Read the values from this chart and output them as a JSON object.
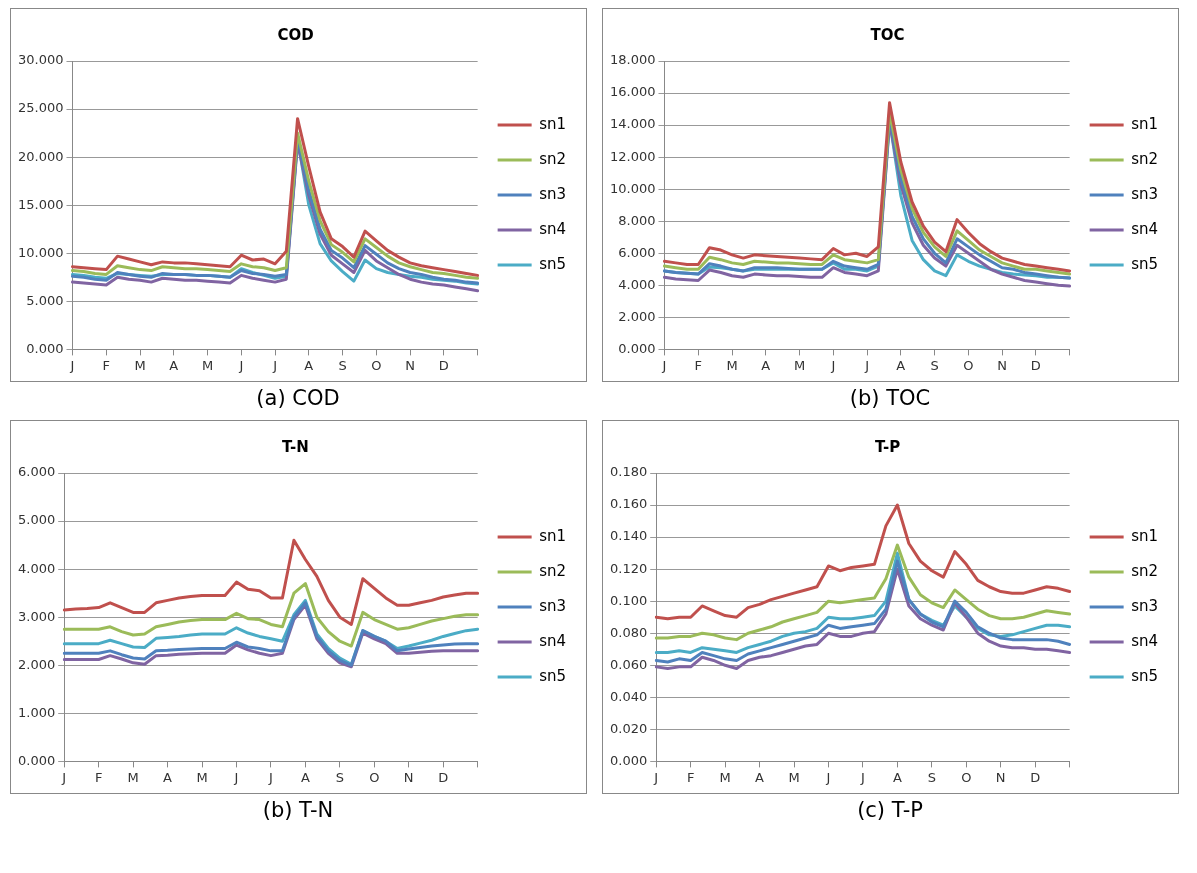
{
  "chart_data": [
    {
      "type": "line",
      "title": "COD",
      "annotations": [
        "(a) COD"
      ],
      "categories": [
        "J",
        null,
        null,
        "F",
        null,
        null,
        "M",
        null,
        null,
        "A",
        null,
        null,
        "M",
        null,
        null,
        "J",
        null,
        null,
        "J",
        null,
        null,
        "A",
        null,
        null,
        "S",
        null,
        null,
        "O",
        null,
        null,
        "N",
        null,
        null,
        "D",
        null,
        null,
        null
      ],
      "ylim": [
        0,
        30
      ],
      "yticks": [
        {
          "value": 0,
          "label": "0.000"
        },
        {
          "value": 5,
          "label": "5.000"
        },
        {
          "value": 10,
          "label": "10.000"
        },
        {
          "value": 15,
          "label": "15.000"
        },
        {
          "value": 20,
          "label": "20.000"
        },
        {
          "value": 25,
          "label": "25.000"
        },
        {
          "value": 30,
          "label": "30.000"
        }
      ],
      "grid": "y",
      "legend": "right",
      "marker": "none",
      "line_style": "solid",
      "series": [
        {
          "name": "sn1",
          "color": "#c0504d",
          "values": [
            8.6,
            8.5,
            8.4,
            8.3,
            9.7,
            9.4,
            9.1,
            8.8,
            9.1,
            9.0,
            9.0,
            8.9,
            8.8,
            8.7,
            8.6,
            9.8,
            9.3,
            9.4,
            8.9,
            10.2,
            24.0,
            19.0,
            14.3,
            11.5,
            10.7,
            9.6,
            12.3,
            11.3,
            10.3,
            9.6,
            9.0,
            8.7,
            8.5,
            8.3,
            8.1,
            7.9,
            7.7
          ]
        },
        {
          "name": "sn2",
          "color": "#9bbb59",
          "values": [
            8.2,
            8.1,
            7.9,
            7.8,
            8.7,
            8.5,
            8.3,
            8.2,
            8.6,
            8.5,
            8.4,
            8.4,
            8.3,
            8.2,
            8.1,
            8.9,
            8.6,
            8.5,
            8.2,
            8.5,
            22.5,
            17.5,
            13.4,
            10.9,
            10.1,
            9.1,
            11.5,
            10.6,
            9.7,
            9.0,
            8.6,
            8.3,
            8.0,
            7.9,
            7.7,
            7.5,
            7.4
          ]
        },
        {
          "name": "sn3",
          "color": "#4f81bd",
          "values": [
            7.6,
            7.5,
            7.3,
            7.2,
            8.0,
            7.8,
            7.6,
            7.5,
            7.9,
            7.8,
            7.8,
            7.7,
            7.7,
            7.6,
            7.5,
            8.2,
            7.9,
            7.8,
            7.6,
            7.8,
            22.0,
            16.5,
            12.5,
            10.3,
            9.5,
            8.5,
            10.8,
            9.9,
            9.0,
            8.4,
            8.0,
            7.8,
            7.5,
            7.3,
            7.2,
            7.0,
            6.9
          ]
        },
        {
          "name": "sn4",
          "color": "#8064a2",
          "values": [
            7.0,
            6.9,
            6.8,
            6.7,
            7.5,
            7.3,
            7.2,
            7.0,
            7.4,
            7.3,
            7.2,
            7.2,
            7.1,
            7.0,
            6.9,
            7.7,
            7.4,
            7.2,
            7.0,
            7.3,
            21.5,
            16.0,
            12.0,
            9.8,
            8.9,
            8.0,
            10.3,
            9.2,
            8.5,
            7.8,
            7.3,
            7.0,
            6.8,
            6.7,
            6.5,
            6.3,
            6.1
          ]
        },
        {
          "name": "sn5",
          "color": "#4bacc6",
          "values": [
            7.8,
            7.7,
            7.5,
            7.4,
            7.9,
            7.8,
            7.7,
            7.6,
            7.8,
            7.8,
            7.8,
            7.7,
            7.7,
            7.6,
            7.5,
            8.4,
            8.0,
            7.7,
            7.4,
            7.6,
            21.8,
            15.0,
            11.0,
            9.2,
            8.1,
            7.1,
            9.3,
            8.4,
            8.0,
            7.8,
            7.6,
            7.5,
            7.3,
            7.2,
            7.1,
            6.9,
            6.8
          ]
        }
      ]
    },
    {
      "type": "line",
      "title": "TOC",
      "annotations": [
        "(b) TOC"
      ],
      "categories": [
        "J",
        null,
        null,
        "F",
        null,
        null,
        "M",
        null,
        null,
        "A",
        null,
        null,
        "M",
        null,
        null,
        "J",
        null,
        null,
        "J",
        null,
        null,
        "A",
        null,
        null,
        "S",
        null,
        null,
        "O",
        null,
        null,
        "N",
        null,
        null,
        "D",
        null,
        null,
        null
      ],
      "ylim": [
        0,
        18
      ],
      "yticks": [
        {
          "value": 0,
          "label": "0.000"
        },
        {
          "value": 2,
          "label": "2.000"
        },
        {
          "value": 4,
          "label": "4.000"
        },
        {
          "value": 6,
          "label": "6.000"
        },
        {
          "value": 8,
          "label": "8.000"
        },
        {
          "value": 10,
          "label": "10.000"
        },
        {
          "value": 12,
          "label": "12.000"
        },
        {
          "value": 14,
          "label": "14.000"
        },
        {
          "value": 16,
          "label": "16.000"
        },
        {
          "value": 18,
          "label": "18.000"
        }
      ],
      "grid": "y",
      "legend": "right",
      "marker": "none",
      "line_style": "solid",
      "series": [
        {
          "name": "sn1",
          "color": "#c0504d",
          "values": [
            5.5,
            5.4,
            5.3,
            5.3,
            6.35,
            6.2,
            5.9,
            5.7,
            5.9,
            5.85,
            5.8,
            5.75,
            5.7,
            5.65,
            5.6,
            6.3,
            5.9,
            6.0,
            5.8,
            6.4,
            15.4,
            11.7,
            9.2,
            7.7,
            6.7,
            6.1,
            8.1,
            7.3,
            6.6,
            6.1,
            5.7,
            5.5,
            5.3,
            5.2,
            5.1,
            5.0,
            4.9
          ]
        },
        {
          "name": "sn2",
          "color": "#9bbb59",
          "values": [
            5.2,
            5.1,
            5.0,
            5.0,
            5.75,
            5.6,
            5.4,
            5.3,
            5.5,
            5.45,
            5.4,
            5.4,
            5.35,
            5.3,
            5.3,
            5.9,
            5.6,
            5.5,
            5.4,
            5.6,
            14.8,
            11.2,
            8.8,
            7.3,
            6.4,
            5.8,
            7.4,
            6.8,
            6.2,
            5.8,
            5.4,
            5.2,
            5.0,
            5.0,
            4.9,
            4.8,
            4.7
          ]
        },
        {
          "name": "sn3",
          "color": "#4f81bd",
          "values": [
            4.9,
            4.8,
            4.75,
            4.7,
            5.35,
            5.2,
            5.0,
            4.9,
            5.1,
            5.1,
            5.1,
            5.05,
            5.0,
            5.0,
            5.0,
            5.5,
            5.2,
            5.1,
            5.0,
            5.3,
            14.5,
            10.7,
            8.3,
            6.9,
            6.0,
            5.4,
            6.9,
            6.4,
            5.9,
            5.5,
            5.1,
            5.0,
            4.8,
            4.7,
            4.6,
            4.5,
            4.45
          ]
        },
        {
          "name": "sn4",
          "color": "#8064a2",
          "values": [
            4.5,
            4.4,
            4.35,
            4.3,
            4.95,
            4.8,
            4.6,
            4.5,
            4.7,
            4.65,
            4.6,
            4.6,
            4.55,
            4.5,
            4.5,
            5.1,
            4.8,
            4.7,
            4.6,
            4.9,
            14.2,
            10.3,
            7.9,
            6.5,
            5.7,
            5.2,
            6.5,
            6.0,
            5.5,
            5.0,
            4.7,
            4.5,
            4.3,
            4.2,
            4.1,
            4.0,
            3.95
          ]
        },
        {
          "name": "sn5",
          "color": "#4bacc6",
          "values": [
            4.9,
            4.8,
            4.75,
            4.7,
            5.15,
            5.1,
            5.0,
            4.9,
            5.0,
            5.0,
            5.0,
            5.0,
            5.0,
            5.0,
            5.0,
            5.4,
            5.0,
            5.0,
            4.9,
            5.2,
            14.3,
            9.6,
            6.8,
            5.6,
            4.9,
            4.6,
            5.9,
            5.5,
            5.2,
            5.0,
            4.8,
            4.7,
            4.65,
            4.6,
            4.5,
            4.5,
            4.45
          ]
        }
      ]
    },
    {
      "type": "line",
      "title": "T-N",
      "annotations": [
        "(b) T-N"
      ],
      "categories": [
        "J",
        null,
        null,
        "F",
        null,
        null,
        "M",
        null,
        null,
        "A",
        null,
        null,
        "M",
        null,
        null,
        "J",
        null,
        null,
        "J",
        null,
        null,
        "A",
        null,
        null,
        "S",
        null,
        null,
        "O",
        null,
        null,
        "N",
        null,
        null,
        "D",
        null,
        null,
        null
      ],
      "ylim": [
        0,
        6
      ],
      "yticks": [
        {
          "value": 0,
          "label": "0.000"
        },
        {
          "value": 1,
          "label": "1.000"
        },
        {
          "value": 2,
          "label": "2.000"
        },
        {
          "value": 3,
          "label": "3.000"
        },
        {
          "value": 4,
          "label": "4.000"
        },
        {
          "value": 5,
          "label": "5.000"
        },
        {
          "value": 6,
          "label": "6.000"
        }
      ],
      "grid": "y",
      "legend": "right",
      "marker": "none",
      "line_style": "solid",
      "series": [
        {
          "name": "sn1",
          "color": "#c0504d",
          "values": [
            3.15,
            3.17,
            3.18,
            3.2,
            3.3,
            3.2,
            3.1,
            3.1,
            3.3,
            3.35,
            3.4,
            3.43,
            3.45,
            3.45,
            3.45,
            3.73,
            3.58,
            3.55,
            3.4,
            3.4,
            4.6,
            4.2,
            3.85,
            3.35,
            3.0,
            2.85,
            3.8,
            3.6,
            3.4,
            3.25,
            3.25,
            3.3,
            3.35,
            3.42,
            3.46,
            3.5,
            3.5
          ]
        },
        {
          "name": "sn2",
          "color": "#9bbb59",
          "values": [
            2.75,
            2.75,
            2.75,
            2.75,
            2.8,
            2.7,
            2.63,
            2.65,
            2.8,
            2.85,
            2.9,
            2.93,
            2.95,
            2.95,
            2.95,
            3.08,
            2.97,
            2.95,
            2.85,
            2.8,
            3.5,
            3.7,
            3.0,
            2.7,
            2.5,
            2.4,
            3.1,
            2.95,
            2.85,
            2.75,
            2.78,
            2.85,
            2.92,
            2.97,
            3.02,
            3.05,
            3.05
          ]
        },
        {
          "name": "sn3",
          "color": "#4f81bd",
          "values": [
            2.25,
            2.25,
            2.25,
            2.25,
            2.3,
            2.22,
            2.15,
            2.13,
            2.3,
            2.31,
            2.33,
            2.34,
            2.35,
            2.35,
            2.35,
            2.48,
            2.38,
            2.35,
            2.3,
            2.3,
            3.0,
            3.3,
            2.6,
            2.3,
            2.1,
            2.0,
            2.72,
            2.6,
            2.5,
            2.3,
            2.34,
            2.37,
            2.4,
            2.42,
            2.44,
            2.45,
            2.45
          ]
        },
        {
          "name": "sn4",
          "color": "#8064a2",
          "values": [
            2.12,
            2.12,
            2.12,
            2.12,
            2.2,
            2.13,
            2.05,
            2.02,
            2.2,
            2.21,
            2.23,
            2.24,
            2.25,
            2.25,
            2.25,
            2.42,
            2.32,
            2.25,
            2.2,
            2.25,
            2.95,
            3.25,
            2.55,
            2.25,
            2.05,
            1.97,
            2.67,
            2.55,
            2.45,
            2.25,
            2.25,
            2.27,
            2.29,
            2.3,
            2.3,
            2.3,
            2.3
          ]
        },
        {
          "name": "sn5",
          "color": "#4bacc6",
          "values": [
            2.45,
            2.45,
            2.45,
            2.45,
            2.52,
            2.45,
            2.38,
            2.37,
            2.56,
            2.58,
            2.6,
            2.63,
            2.65,
            2.65,
            2.65,
            2.78,
            2.67,
            2.6,
            2.55,
            2.5,
            3.05,
            3.35,
            2.65,
            2.35,
            2.15,
            2.02,
            2.72,
            2.6,
            2.5,
            2.35,
            2.4,
            2.46,
            2.52,
            2.6,
            2.66,
            2.72,
            2.75
          ]
        }
      ]
    },
    {
      "type": "line",
      "title": "T-P",
      "annotations": [
        "(c) T-P"
      ],
      "categories": [
        "J",
        null,
        null,
        "F",
        null,
        null,
        "M",
        null,
        null,
        "A",
        null,
        null,
        "M",
        null,
        null,
        "J",
        null,
        null,
        "J",
        null,
        null,
        "A",
        null,
        null,
        "S",
        null,
        null,
        "O",
        null,
        null,
        "N",
        null,
        null,
        "D",
        null,
        null,
        null
      ],
      "ylim": [
        0,
        0.18
      ],
      "yticks": [
        {
          "value": 0,
          "label": "0.000"
        },
        {
          "value": 0.02,
          "label": "0.020"
        },
        {
          "value": 0.04,
          "label": "0.040"
        },
        {
          "value": 0.06,
          "label": "0.060"
        },
        {
          "value": 0.08,
          "label": "0.080"
        },
        {
          "value": 0.1,
          "label": "0.100"
        },
        {
          "value": 0.12,
          "label": "0.120"
        },
        {
          "value": 0.14,
          "label": "0.140"
        },
        {
          "value": 0.16,
          "label": "0.160"
        },
        {
          "value": 0.18,
          "label": "0.180"
        }
      ],
      "grid": "y",
      "legend": "right",
      "marker": "none",
      "line_style": "solid",
      "series": [
        {
          "name": "sn1",
          "color": "#c0504d",
          "values": [
            0.09,
            0.089,
            0.09,
            0.09,
            0.097,
            0.094,
            0.091,
            0.09,
            0.096,
            0.098,
            0.101,
            0.103,
            0.105,
            0.107,
            0.109,
            0.122,
            0.119,
            0.121,
            0.122,
            0.123,
            0.147,
            0.16,
            0.136,
            0.125,
            0.119,
            0.115,
            0.131,
            0.123,
            0.113,
            0.109,
            0.106,
            0.105,
            0.105,
            0.107,
            0.109,
            0.108,
            0.106
          ]
        },
        {
          "name": "sn2",
          "color": "#9bbb59",
          "values": [
            0.077,
            0.077,
            0.078,
            0.078,
            0.08,
            0.079,
            0.077,
            0.076,
            0.08,
            0.082,
            0.084,
            0.087,
            0.089,
            0.091,
            0.093,
            0.1,
            0.099,
            0.1,
            0.101,
            0.102,
            0.114,
            0.135,
            0.115,
            0.104,
            0.099,
            0.096,
            0.107,
            0.101,
            0.095,
            0.091,
            0.089,
            0.089,
            0.09,
            0.092,
            0.094,
            0.093,
            0.092
          ]
        },
        {
          "name": "sn3",
          "color": "#4f81bd",
          "values": [
            0.063,
            0.062,
            0.064,
            0.063,
            0.068,
            0.066,
            0.064,
            0.063,
            0.067,
            0.069,
            0.071,
            0.073,
            0.075,
            0.077,
            0.079,
            0.085,
            0.083,
            0.084,
            0.085,
            0.086,
            0.095,
            0.125,
            0.101,
            0.092,
            0.087,
            0.084,
            0.1,
            0.093,
            0.084,
            0.08,
            0.077,
            0.076,
            0.076,
            0.076,
            0.076,
            0.075,
            0.073
          ]
        },
        {
          "name": "sn4",
          "color": "#8064a2",
          "values": [
            0.059,
            0.058,
            0.059,
            0.059,
            0.065,
            0.063,
            0.06,
            0.058,
            0.063,
            0.065,
            0.066,
            0.068,
            0.07,
            0.072,
            0.073,
            0.08,
            0.078,
            0.078,
            0.08,
            0.081,
            0.092,
            0.12,
            0.097,
            0.089,
            0.085,
            0.082,
            0.099,
            0.09,
            0.08,
            0.075,
            0.072,
            0.071,
            0.071,
            0.07,
            0.07,
            0.069,
            0.068
          ]
        },
        {
          "name": "sn5",
          "color": "#4bacc6",
          "values": [
            0.068,
            0.068,
            0.069,
            0.068,
            0.071,
            0.07,
            0.069,
            0.068,
            0.071,
            0.073,
            0.075,
            0.078,
            0.08,
            0.081,
            0.083,
            0.09,
            0.089,
            0.089,
            0.09,
            0.091,
            0.1,
            0.13,
            0.101,
            0.092,
            0.088,
            0.085,
            0.097,
            0.09,
            0.083,
            0.079,
            0.078,
            0.079,
            0.081,
            0.083,
            0.085,
            0.085,
            0.084
          ]
        }
      ]
    }
  ]
}
